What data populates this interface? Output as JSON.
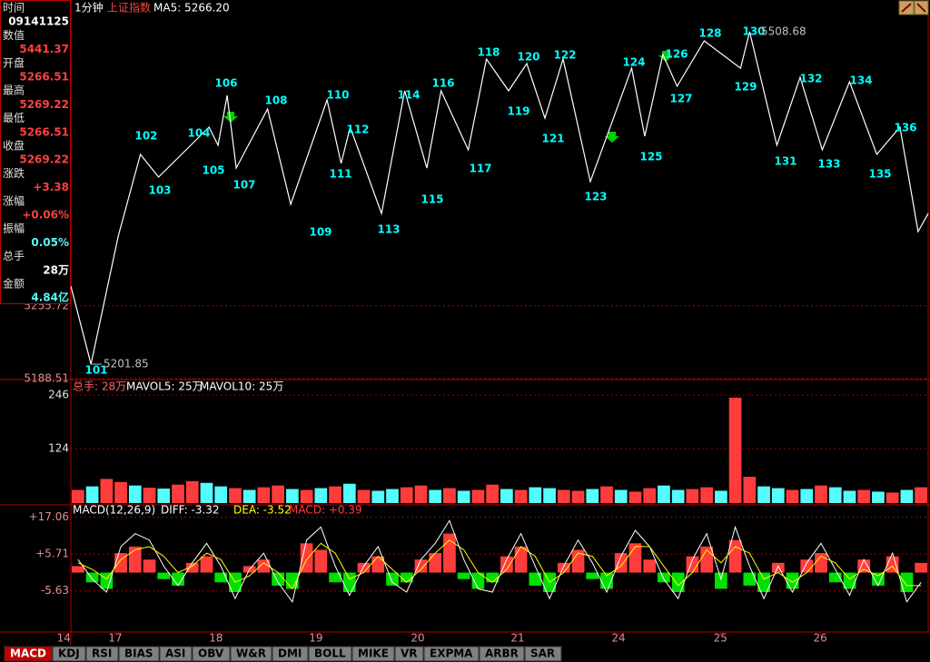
{
  "header": {
    "period": "1分钟",
    "index_name": "上证指数",
    "ma5": "MA5: 5266.20"
  },
  "info_panel": {
    "rows": [
      {
        "label": "时间",
        "value": "09141125"
      },
      {
        "label": "数值",
        "value": "5441.37"
      },
      {
        "label": "开盘",
        "value": "5266.51"
      },
      {
        "label": "最高",
        "value": "5269.22"
      },
      {
        "label": "最低",
        "value": "5266.51"
      },
      {
        "label": "收盘",
        "value": "5269.22"
      },
      {
        "label": "涨跌",
        "value": "+3.38"
      },
      {
        "label": "涨幅",
        "value": "+0.06%"
      },
      {
        "label": "振幅",
        "value": "0.05%"
      },
      {
        "label": "总手",
        "value": "28万"
      },
      {
        "label": "金额",
        "value": "4.84亿"
      }
    ]
  },
  "chart_data": [
    {
      "type": "line",
      "color": "#ffffff",
      "x": [
        0,
        0.2,
        0.47,
        0.69,
        0.87,
        1.37,
        1.46,
        1.55,
        1.64,
        1.95,
        2.18,
        2.54,
        2.68,
        2.77,
        3.08,
        3.31,
        3.53,
        3.67,
        3.94,
        4.12,
        4.34,
        4.52,
        4.7,
        4.88,
        5.15,
        5.56,
        5.69,
        5.87,
        6.01,
        6.28,
        6.64,
        6.73,
        7.0,
        7.23,
        7.45,
        7.72,
        7.99,
        8.22,
        8.4,
        8.5
      ],
      "values": [
        5274.0,
        5201.85,
        5320.1,
        5395.5,
        5374.6,
        5420.7,
        5403.9,
        5450.0,
        5382.9,
        5437.4,
        5349.4,
        5445.8,
        5387.1,
        5420.7,
        5341.0,
        5454.2,
        5382.9,
        5454.2,
        5399.7,
        5483.5,
        5454.2,
        5479.3,
        5429.0,
        5483.5,
        5370.4,
        5475.1,
        5412.3,
        5487.7,
        5458.4,
        5500.3,
        5475.1,
        5508.68,
        5403.9,
        5466.7,
        5399.7,
        5462.6,
        5395.5,
        5420.7,
        5324.3,
        5341.0
      ],
      "xlim": [
        0,
        8.5
      ],
      "ylim": [
        5188.51,
        5538
      ],
      "yticks": [
        5188.51,
        5255.72
      ],
      "wave_labels": [
        "101",
        "102",
        "103",
        "104",
        "105",
        "106",
        "107",
        "108",
        "109",
        "110",
        "111",
        "112",
        "113",
        "114",
        "115",
        "116",
        "117",
        "118",
        "119",
        "120",
        "121",
        "122",
        "123",
        "124",
        "125",
        "126",
        "127",
        "128",
        "129",
        "130",
        "131",
        "132",
        "133",
        "134",
        "135",
        "136"
      ]
    },
    {
      "type": "bar",
      "title": "总手: 28万",
      "mavol5": "MAVOL5: 25万",
      "mavol10": "MAVOL10: 25万",
      "values": [
        30,
        38,
        55,
        48,
        40,
        35,
        33,
        42,
        50,
        46,
        38,
        34,
        30,
        36,
        40,
        32,
        30,
        34,
        38,
        44,
        30,
        28,
        32,
        36,
        40,
        30,
        34,
        28,
        30,
        42,
        32,
        30,
        36,
        34,
        30,
        28,
        32,
        38,
        30,
        26,
        34,
        40,
        30,
        32,
        36,
        28,
        240,
        60,
        38,
        34,
        30,
        32,
        40,
        36,
        28,
        30,
        26,
        24,
        30,
        36
      ],
      "rising": [
        1,
        0,
        1,
        1,
        0,
        1,
        0,
        1,
        1,
        0,
        0,
        1,
        0,
        1,
        1,
        0,
        1,
        0,
        1,
        0,
        1,
        0,
        0,
        1,
        1,
        0,
        1,
        0,
        1,
        1,
        0,
        1,
        0,
        0,
        1,
        1,
        0,
        1,
        0,
        1,
        1,
        0,
        0,
        1,
        1,
        0,
        1,
        1,
        0,
        0,
        1,
        0,
        1,
        0,
        0,
        1,
        0,
        1,
        0,
        1
      ],
      "up_color": "#ff3c3c",
      "down_color": "#54fcfc",
      "ylim": [
        0,
        277
      ],
      "yticks": [
        124,
        246
      ]
    },
    {
      "type": "macd",
      "title": "MACD(12,26,9)",
      "diff_label": "DIFF: -3.32",
      "dea_label": "DEA: -3.52",
      "macd_label": "MACD: +0.39",
      "hist": {
        "up_color": "#ff3c3c",
        "down_color": "#00e000",
        "values": [
          2,
          -3,
          -5,
          6,
          8,
          4,
          -2,
          -4,
          3,
          5,
          -3,
          -6,
          2,
          4,
          -4,
          -5,
          9,
          7,
          -3,
          -6,
          3,
          5,
          -4,
          -3,
          4,
          6,
          12,
          -2,
          -5,
          -3,
          5,
          8,
          -4,
          -6,
          3,
          7,
          -2,
          -5,
          6,
          9,
          4,
          -3,
          -6,
          5,
          8,
          -5,
          10,
          -4,
          -6,
          3,
          -5,
          4,
          6,
          -3,
          -5,
          4,
          -4,
          5,
          -6,
          3
        ]
      },
      "diff": {
        "color": "#ffffff",
        "values": [
          4,
          -2,
          -6,
          8,
          12,
          10,
          2,
          -4,
          3,
          9,
          2,
          -8,
          1,
          6,
          -3,
          -9,
          10,
          14,
          2,
          -7,
          2,
          8,
          -3,
          -6,
          4,
          9,
          16,
          4,
          -5,
          -6,
          4,
          12,
          2,
          -8,
          2,
          10,
          3,
          -6,
          5,
          13,
          8,
          -2,
          -8,
          4,
          12,
          -2,
          14,
          2,
          -8,
          2,
          -6,
          3,
          9,
          1,
          -7,
          4,
          -4,
          6,
          -9,
          -3
        ]
      },
      "dea": {
        "color": "#ffff00",
        "values": [
          3,
          1,
          -2,
          4,
          7,
          8,
          5,
          0,
          2,
          6,
          4,
          -3,
          -1,
          3,
          0,
          -5,
          4,
          9,
          6,
          -2,
          0,
          5,
          1,
          -3,
          1,
          6,
          10,
          7,
          0,
          -3,
          1,
          8,
          5,
          -3,
          0,
          6,
          5,
          -1,
          2,
          8,
          8,
          2,
          -4,
          0,
          7,
          3,
          8,
          6,
          -2,
          0,
          -3,
          0,
          5,
          3,
          -2,
          1,
          -1,
          2,
          -4,
          -4
        ]
      },
      "ylim": [
        -18,
        19.7
      ],
      "yticks": [
        {
          "value": 17.06,
          "label": "+17.06"
        },
        {
          "value": 5.71,
          "label": "+5.71"
        },
        -5.63
      ],
      "xlim": [
        0,
        8.5
      ],
      "xticks": [
        {
          "value": -0.07,
          "label": "14"
        },
        {
          "value": 0.44,
          "label": "17"
        },
        {
          "value": 1.44,
          "label": "18"
        },
        {
          "value": 2.43,
          "label": "19"
        },
        {
          "value": 3.44,
          "label": "20"
        },
        {
          "value": 4.43,
          "label": "21"
        },
        {
          "value": 5.43,
          "label": "24"
        },
        {
          "value": 6.44,
          "label": "25"
        },
        {
          "value": 7.43,
          "label": "26"
        }
      ]
    }
  ],
  "tabs": [
    "MACD",
    "KDJ",
    "RSI",
    "BIAS",
    "ASI",
    "OBV",
    "W&R",
    "DMI",
    "BOLL",
    "MIKE",
    "VR",
    "EXPMA",
    "ARBR",
    "SAR"
  ]
}
